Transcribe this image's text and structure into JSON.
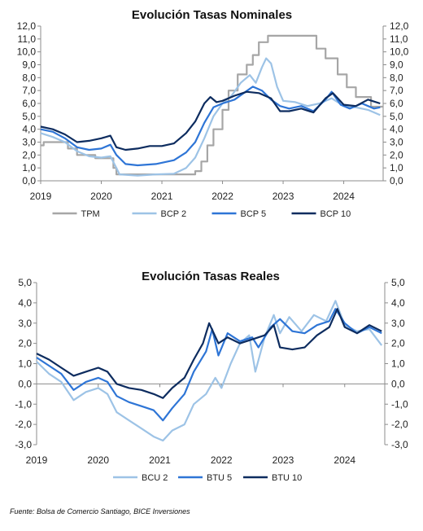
{
  "source_note": "Fuente: Bolsa de Comercio Santiago, BICE Inversiones",
  "chart_data": [
    {
      "type": "line",
      "title": "Evolución Tasas Nominales",
      "xlabel": "",
      "ylabel": "",
      "xlim": [
        2019.0,
        2024.65
      ],
      "ylim": [
        0,
        12
      ],
      "x_ticks": [
        "2019",
        "2020",
        "2021",
        "2022",
        "2023",
        "2024"
      ],
      "y_ticks": [
        "0,0",
        "1,0",
        "2,0",
        "3,0",
        "4,0",
        "5,0",
        "6,0",
        "7,0",
        "8,0",
        "9,0",
        "10,0",
        "11,0",
        "12,0"
      ],
      "dual_y_axis": true,
      "grid": false,
      "legend_position": "bottom",
      "series": [
        {
          "name": "TPM",
          "color": "#a6a6a6",
          "step": true,
          "points": [
            [
              2019.0,
              2.75
            ],
            [
              2019.05,
              3.0
            ],
            [
              2019.45,
              2.5
            ],
            [
              2019.6,
              2.0
            ],
            [
              2019.9,
              1.75
            ],
            [
              2020.2,
              1.0
            ],
            [
              2020.25,
              0.5
            ],
            [
              2021.55,
              0.75
            ],
            [
              2021.65,
              1.5
            ],
            [
              2021.75,
              2.75
            ],
            [
              2021.85,
              4.0
            ],
            [
              2022.0,
              5.5
            ],
            [
              2022.1,
              7.0
            ],
            [
              2022.25,
              8.25
            ],
            [
              2022.4,
              9.0
            ],
            [
              2022.5,
              9.75
            ],
            [
              2022.6,
              10.75
            ],
            [
              2022.75,
              11.25
            ],
            [
              2023.55,
              10.25
            ],
            [
              2023.7,
              9.5
            ],
            [
              2023.9,
              8.25
            ],
            [
              2024.05,
              7.25
            ],
            [
              2024.2,
              6.5
            ],
            [
              2024.45,
              5.75
            ],
            [
              2024.65,
              5.75
            ]
          ]
        },
        {
          "name": "BCP 2",
          "color": "#9dc3e6",
          "points": [
            [
              2019.0,
              3.7
            ],
            [
              2019.2,
              3.4
            ],
            [
              2019.4,
              3.0
            ],
            [
              2019.6,
              2.3
            ],
            [
              2019.8,
              1.9
            ],
            [
              2020.0,
              1.8
            ],
            [
              2020.15,
              1.9
            ],
            [
              2020.25,
              1.0
            ],
            [
              2020.3,
              0.5
            ],
            [
              2020.6,
              0.4
            ],
            [
              2020.9,
              0.5
            ],
            [
              2021.2,
              0.55
            ],
            [
              2021.4,
              1.0
            ],
            [
              2021.55,
              1.8
            ],
            [
              2021.7,
              3.3
            ],
            [
              2021.85,
              5.0
            ],
            [
              2022.0,
              6.0
            ],
            [
              2022.15,
              6.6
            ],
            [
              2022.3,
              7.6
            ],
            [
              2022.45,
              8.2
            ],
            [
              2022.55,
              7.6
            ],
            [
              2022.65,
              8.8
            ],
            [
              2022.72,
              9.5
            ],
            [
              2022.8,
              9.1
            ],
            [
              2022.9,
              7.3
            ],
            [
              2023.0,
              6.2
            ],
            [
              2023.2,
              6.1
            ],
            [
              2023.4,
              5.8
            ],
            [
              2023.6,
              6.0
            ],
            [
              2023.8,
              6.4
            ],
            [
              2024.0,
              5.8
            ],
            [
              2024.2,
              5.7
            ],
            [
              2024.4,
              5.5
            ],
            [
              2024.6,
              5.1
            ]
          ]
        },
        {
          "name": "BCP 5",
          "color": "#2e75d6",
          "points": [
            [
              2019.0,
              4.0
            ],
            [
              2019.2,
              3.8
            ],
            [
              2019.4,
              3.3
            ],
            [
              2019.6,
              2.6
            ],
            [
              2019.8,
              2.4
            ],
            [
              2020.0,
              2.5
            ],
            [
              2020.15,
              2.8
            ],
            [
              2020.25,
              2.0
            ],
            [
              2020.4,
              1.3
            ],
            [
              2020.6,
              1.2
            ],
            [
              2020.9,
              1.3
            ],
            [
              2021.2,
              1.6
            ],
            [
              2021.4,
              2.2
            ],
            [
              2021.55,
              3.0
            ],
            [
              2021.7,
              4.5
            ],
            [
              2021.85,
              5.7
            ],
            [
              2022.0,
              6.0
            ],
            [
              2022.2,
              6.3
            ],
            [
              2022.35,
              6.8
            ],
            [
              2022.5,
              7.3
            ],
            [
              2022.65,
              7.0
            ],
            [
              2022.8,
              6.3
            ],
            [
              2022.95,
              5.8
            ],
            [
              2023.1,
              5.6
            ],
            [
              2023.3,
              5.8
            ],
            [
              2023.5,
              5.4
            ],
            [
              2023.7,
              6.3
            ],
            [
              2023.8,
              6.9
            ],
            [
              2023.95,
              5.9
            ],
            [
              2024.1,
              5.6
            ],
            [
              2024.3,
              6.0
            ],
            [
              2024.5,
              5.6
            ],
            [
              2024.6,
              5.7
            ]
          ]
        },
        {
          "name": "BCP 10",
          "color": "#0d2c5f",
          "points": [
            [
              2019.0,
              4.2
            ],
            [
              2019.2,
              4.0
            ],
            [
              2019.4,
              3.6
            ],
            [
              2019.6,
              3.0
            ],
            [
              2019.8,
              3.1
            ],
            [
              2020.0,
              3.3
            ],
            [
              2020.15,
              3.5
            ],
            [
              2020.25,
              2.6
            ],
            [
              2020.4,
              2.4
            ],
            [
              2020.6,
              2.5
            ],
            [
              2020.8,
              2.7
            ],
            [
              2021.0,
              2.7
            ],
            [
              2021.2,
              2.9
            ],
            [
              2021.4,
              3.7
            ],
            [
              2021.55,
              4.6
            ],
            [
              2021.7,
              6.0
            ],
            [
              2021.8,
              6.5
            ],
            [
              2021.9,
              6.1
            ],
            [
              2022.0,
              6.2
            ],
            [
              2022.2,
              6.6
            ],
            [
              2022.4,
              6.9
            ],
            [
              2022.6,
              6.8
            ],
            [
              2022.8,
              6.4
            ],
            [
              2022.95,
              5.4
            ],
            [
              2023.1,
              5.4
            ],
            [
              2023.3,
              5.6
            ],
            [
              2023.5,
              5.3
            ],
            [
              2023.7,
              6.4
            ],
            [
              2023.82,
              6.8
            ],
            [
              2024.0,
              5.9
            ],
            [
              2024.2,
              5.8
            ],
            [
              2024.4,
              6.3
            ],
            [
              2024.6,
              6.0
            ]
          ]
        }
      ]
    },
    {
      "type": "line",
      "title": "Evolución Tasas Reales",
      "xlabel": "",
      "ylabel": "",
      "xlim": [
        2019.0,
        2024.65
      ],
      "ylim": [
        -3,
        5
      ],
      "x_ticks": [
        "2019",
        "2020",
        "2021",
        "2022",
        "2023",
        "2024"
      ],
      "y_ticks": [
        "-3,0",
        "-2,0",
        "-1,0",
        "0,0",
        "1,0",
        "2,0",
        "3,0",
        "4,0",
        "5,0"
      ],
      "dual_y_axis": true,
      "grid": false,
      "legend_position": "bottom",
      "series": [
        {
          "name": "BCU 2",
          "color": "#9dc3e6",
          "points": [
            [
              2019.0,
              1.1
            ],
            [
              2019.2,
              0.5
            ],
            [
              2019.4,
              0.1
            ],
            [
              2019.6,
              -0.8
            ],
            [
              2019.8,
              -0.4
            ],
            [
              2020.0,
              -0.2
            ],
            [
              2020.15,
              -0.5
            ],
            [
              2020.3,
              -1.4
            ],
            [
              2020.5,
              -1.8
            ],
            [
              2020.7,
              -2.2
            ],
            [
              2020.9,
              -2.6
            ],
            [
              2021.05,
              -2.8
            ],
            [
              2021.2,
              -2.3
            ],
            [
              2021.4,
              -2.0
            ],
            [
              2021.55,
              -1.0
            ],
            [
              2021.75,
              -0.5
            ],
            [
              2021.9,
              0.3
            ],
            [
              2022.0,
              -0.2
            ],
            [
              2022.15,
              1.0
            ],
            [
              2022.3,
              2.0
            ],
            [
              2022.45,
              2.4
            ],
            [
              2022.55,
              0.6
            ],
            [
              2022.7,
              2.3
            ],
            [
              2022.85,
              3.4
            ],
            [
              2022.95,
              2.5
            ],
            [
              2023.1,
              3.3
            ],
            [
              2023.3,
              2.6
            ],
            [
              2023.5,
              3.4
            ],
            [
              2023.7,
              3.1
            ],
            [
              2023.85,
              4.1
            ],
            [
              2024.0,
              2.9
            ],
            [
              2024.2,
              2.6
            ],
            [
              2024.4,
              2.7
            ],
            [
              2024.6,
              1.9
            ]
          ]
        },
        {
          "name": "BTU 5",
          "color": "#2e75d6",
          "points": [
            [
              2019.0,
              1.3
            ],
            [
              2019.2,
              0.9
            ],
            [
              2019.4,
              0.5
            ],
            [
              2019.6,
              -0.3
            ],
            [
              2019.8,
              0.1
            ],
            [
              2020.0,
              0.3
            ],
            [
              2020.15,
              0.1
            ],
            [
              2020.3,
              -0.6
            ],
            [
              2020.5,
              -0.9
            ],
            [
              2020.7,
              -1.1
            ],
            [
              2020.9,
              -1.3
            ],
            [
              2021.05,
              -1.8
            ],
            [
              2021.2,
              -1.2
            ],
            [
              2021.4,
              -0.5
            ],
            [
              2021.55,
              0.6
            ],
            [
              2021.75,
              1.6
            ],
            [
              2021.85,
              2.7
            ],
            [
              2021.95,
              1.4
            ],
            [
              2022.1,
              2.5
            ],
            [
              2022.3,
              2.1
            ],
            [
              2022.5,
              2.3
            ],
            [
              2022.6,
              1.8
            ],
            [
              2022.8,
              2.8
            ],
            [
              2022.95,
              3.2
            ],
            [
              2023.15,
              2.6
            ],
            [
              2023.35,
              2.5
            ],
            [
              2023.55,
              2.9
            ],
            [
              2023.75,
              3.1
            ],
            [
              2023.85,
              3.7
            ],
            [
              2024.0,
              3.0
            ],
            [
              2024.2,
              2.5
            ],
            [
              2024.4,
              2.8
            ],
            [
              2024.6,
              2.5
            ]
          ]
        },
        {
          "name": "BTU 10",
          "color": "#0d2c5f",
          "points": [
            [
              2019.0,
              1.5
            ],
            [
              2019.2,
              1.2
            ],
            [
              2019.4,
              0.8
            ],
            [
              2019.6,
              0.4
            ],
            [
              2019.8,
              0.6
            ],
            [
              2020.0,
              0.8
            ],
            [
              2020.15,
              0.6
            ],
            [
              2020.3,
              0.0
            ],
            [
              2020.5,
              -0.2
            ],
            [
              2020.7,
              -0.3
            ],
            [
              2020.9,
              -0.5
            ],
            [
              2021.05,
              -0.7
            ],
            [
              2021.2,
              -0.2
            ],
            [
              2021.4,
              0.3
            ],
            [
              2021.55,
              1.2
            ],
            [
              2021.7,
              2.0
            ],
            [
              2021.8,
              3.0
            ],
            [
              2021.95,
              2.0
            ],
            [
              2022.1,
              2.3
            ],
            [
              2022.3,
              2.0
            ],
            [
              2022.5,
              2.2
            ],
            [
              2022.7,
              2.4
            ],
            [
              2022.85,
              2.9
            ],
            [
              2022.95,
              1.8
            ],
            [
              2023.15,
              1.7
            ],
            [
              2023.35,
              1.8
            ],
            [
              2023.55,
              2.4
            ],
            [
              2023.75,
              2.8
            ],
            [
              2023.88,
              3.7
            ],
            [
              2024.0,
              2.8
            ],
            [
              2024.2,
              2.5
            ],
            [
              2024.4,
              2.9
            ],
            [
              2024.6,
              2.6
            ]
          ]
        }
      ]
    }
  ]
}
